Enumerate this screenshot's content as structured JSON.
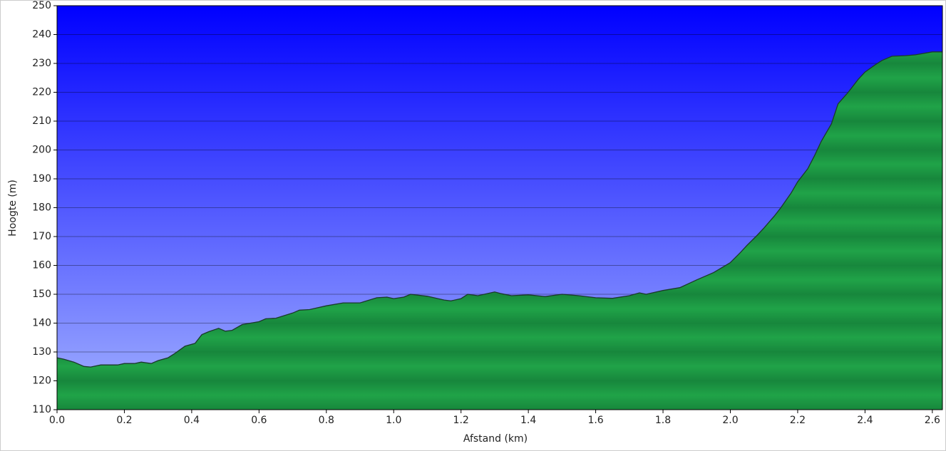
{
  "chart_data": {
    "type": "area",
    "x_label": "Afstand  (km)",
    "y_label": "Hoogte (m)",
    "x": [
      0.0,
      0.02,
      0.05,
      0.08,
      0.1,
      0.13,
      0.18,
      0.2,
      0.23,
      0.25,
      0.28,
      0.3,
      0.33,
      0.35,
      0.38,
      0.41,
      0.43,
      0.45,
      0.48,
      0.5,
      0.52,
      0.55,
      0.6,
      0.62,
      0.65,
      0.7,
      0.72,
      0.75,
      0.8,
      0.85,
      0.9,
      0.95,
      0.98,
      1.0,
      1.03,
      1.05,
      1.1,
      1.15,
      1.17,
      1.2,
      1.22,
      1.25,
      1.3,
      1.32,
      1.35,
      1.4,
      1.45,
      1.5,
      1.55,
      1.6,
      1.65,
      1.7,
      1.73,
      1.75,
      1.8,
      1.85,
      1.9,
      1.95,
      2.0,
      2.03,
      2.05,
      2.08,
      2.1,
      2.13,
      2.15,
      2.18,
      2.2,
      2.23,
      2.25,
      2.27,
      2.3,
      2.32,
      2.35,
      2.38,
      2.4,
      2.43,
      2.45,
      2.48,
      2.52,
      2.55,
      2.6,
      2.63
    ],
    "series": [
      {
        "color": "#1c9a42",
        "values": [
          128,
          127.5,
          126.5,
          125,
          124.8,
          125.5,
          125.5,
          126,
          126,
          126.5,
          126,
          127,
          128,
          129.5,
          132,
          133,
          136,
          137,
          138.2,
          137.2,
          137.5,
          139.5,
          140.5,
          141.5,
          141.7,
          143.5,
          144.5,
          144.7,
          146,
          147,
          147,
          148.8,
          149,
          148.5,
          149,
          150,
          149.3,
          148,
          147.7,
          148.5,
          150,
          149.5,
          150.8,
          150.2,
          149.5,
          149.8,
          149.2,
          150,
          149.5,
          148.8,
          148.6,
          149.5,
          150.5,
          150,
          151.3,
          152.3,
          155,
          157.5,
          161,
          164.5,
          167,
          170.5,
          173,
          177,
          180,
          185,
          189,
          193.5,
          198,
          203,
          209,
          216,
          220,
          224.5,
          227,
          229.5,
          231,
          232.5,
          232.7,
          233,
          234,
          234
        ]
      }
    ],
    "xlim": [
      0,
      2.63
    ],
    "ylim": [
      110,
      250
    ],
    "xticks": [
      {
        "value": 0,
        "label": "0.0"
      },
      0.2,
      0.4,
      0.6,
      0.8,
      {
        "value": 1,
        "label": "1.0"
      },
      1.2,
      1.4,
      1.6,
      1.8,
      {
        "value": 2,
        "label": "2.0"
      },
      2.2,
      2.4,
      2.6
    ],
    "yticks": [
      110,
      120,
      130,
      140,
      150,
      160,
      170,
      180,
      190,
      200,
      210,
      220,
      230,
      240,
      250
    ],
    "grid": true
  }
}
